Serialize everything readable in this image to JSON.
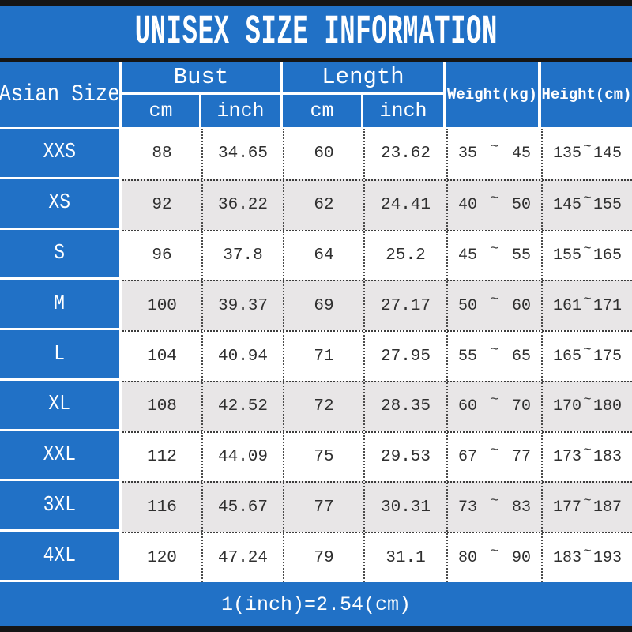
{
  "title": "UNISEX SIZE INFORMATION",
  "footer_note": "1(inch)=2.54(cm)",
  "table": {
    "corner_label": "Asian Size",
    "bust_group_label": "Bust",
    "length_group_label": "Length",
    "bust_cm_label": "cm",
    "bust_inch_label": "inch",
    "length_cm_label": "cm",
    "length_inch_label": "inch",
    "weight_label": "Weight(kg)",
    "height_label": "Height(cm)",
    "tilde": "~",
    "rows": [
      {
        "size": "XXS",
        "bust_cm": "88",
        "bust_inch": "34.65",
        "length_cm": "60",
        "length_inch": "23.62",
        "weight_min": "35",
        "weight_max": "45",
        "height_min": "135",
        "height_max": "145"
      },
      {
        "size": "XS",
        "bust_cm": "92",
        "bust_inch": "36.22",
        "length_cm": "62",
        "length_inch": "24.41",
        "weight_min": "40",
        "weight_max": "50",
        "height_min": "145",
        "height_max": "155"
      },
      {
        "size": "S",
        "bust_cm": "96",
        "bust_inch": "37.8",
        "length_cm": "64",
        "length_inch": "25.2",
        "weight_min": "45",
        "weight_max": "55",
        "height_min": "155",
        "height_max": "165"
      },
      {
        "size": "M",
        "bust_cm": "100",
        "bust_inch": "39.37",
        "length_cm": "69",
        "length_inch": "27.17",
        "weight_min": "50",
        "weight_max": "60",
        "height_min": "161",
        "height_max": "171"
      },
      {
        "size": "L",
        "bust_cm": "104",
        "bust_inch": "40.94",
        "length_cm": "71",
        "length_inch": "27.95",
        "weight_min": "55",
        "weight_max": "65",
        "height_min": "165",
        "height_max": "175"
      },
      {
        "size": "XL",
        "bust_cm": "108",
        "bust_inch": "42.52",
        "length_cm": "72",
        "length_inch": "28.35",
        "weight_min": "60",
        "weight_max": "70",
        "height_min": "170",
        "height_max": "180"
      },
      {
        "size": "XXL",
        "bust_cm": "112",
        "bust_inch": "44.09",
        "length_cm": "75",
        "length_inch": "29.53",
        "weight_min": "67",
        "weight_max": "77",
        "height_min": "173",
        "height_max": "183"
      },
      {
        "size": "3XL",
        "bust_cm": "116",
        "bust_inch": "45.67",
        "length_cm": "77",
        "length_inch": "30.31",
        "weight_min": "73",
        "weight_max": "83",
        "height_min": "177",
        "height_max": "187"
      },
      {
        "size": "4XL",
        "bust_cm": "120",
        "bust_inch": "47.24",
        "length_cm": "79",
        "length_inch": "31.1",
        "weight_min": "80",
        "weight_max": "90",
        "height_min": "183",
        "height_max": "193"
      }
    ]
  },
  "colors": {
    "blue": "#2171c6",
    "alt_row": "#e8e6e7",
    "bar": "#151515",
    "text_dark": "#2f2f2f"
  },
  "chart_data": {
    "type": "table",
    "title": "UNISEX SIZE INFORMATION",
    "columns": [
      "Asian Size",
      "Bust cm",
      "Bust inch",
      "Length cm",
      "Length inch",
      "Weight(kg)",
      "Height(cm)"
    ],
    "rows": [
      [
        "XXS",
        88,
        34.65,
        60,
        23.62,
        "35 ~ 45",
        "135 ~ 145"
      ],
      [
        "XS",
        92,
        36.22,
        62,
        24.41,
        "40 ~ 50",
        "145 ~ 155"
      ],
      [
        "S",
        96,
        37.8,
        64,
        25.2,
        "45 ~ 55",
        "155 ~ 165"
      ],
      [
        "M",
        100,
        39.37,
        69,
        27.17,
        "50 ~ 60",
        "161 ~ 171"
      ],
      [
        "L",
        104,
        40.94,
        71,
        27.95,
        "55 ~ 65",
        "165 ~ 175"
      ],
      [
        "XL",
        108,
        42.52,
        72,
        28.35,
        "60 ~ 70",
        "170 ~ 180"
      ],
      [
        "XXL",
        112,
        44.09,
        75,
        29.53,
        "67 ~ 77",
        "173 ~ 183"
      ],
      [
        "3XL",
        116,
        45.67,
        77,
        30.31,
        "73 ~ 83",
        "177 ~ 187"
      ],
      [
        "4XL",
        120,
        47.24,
        79,
        31.1,
        "80 ~ 90",
        "183 ~ 193"
      ]
    ],
    "footnote": "1(inch)=2.54(cm)"
  }
}
